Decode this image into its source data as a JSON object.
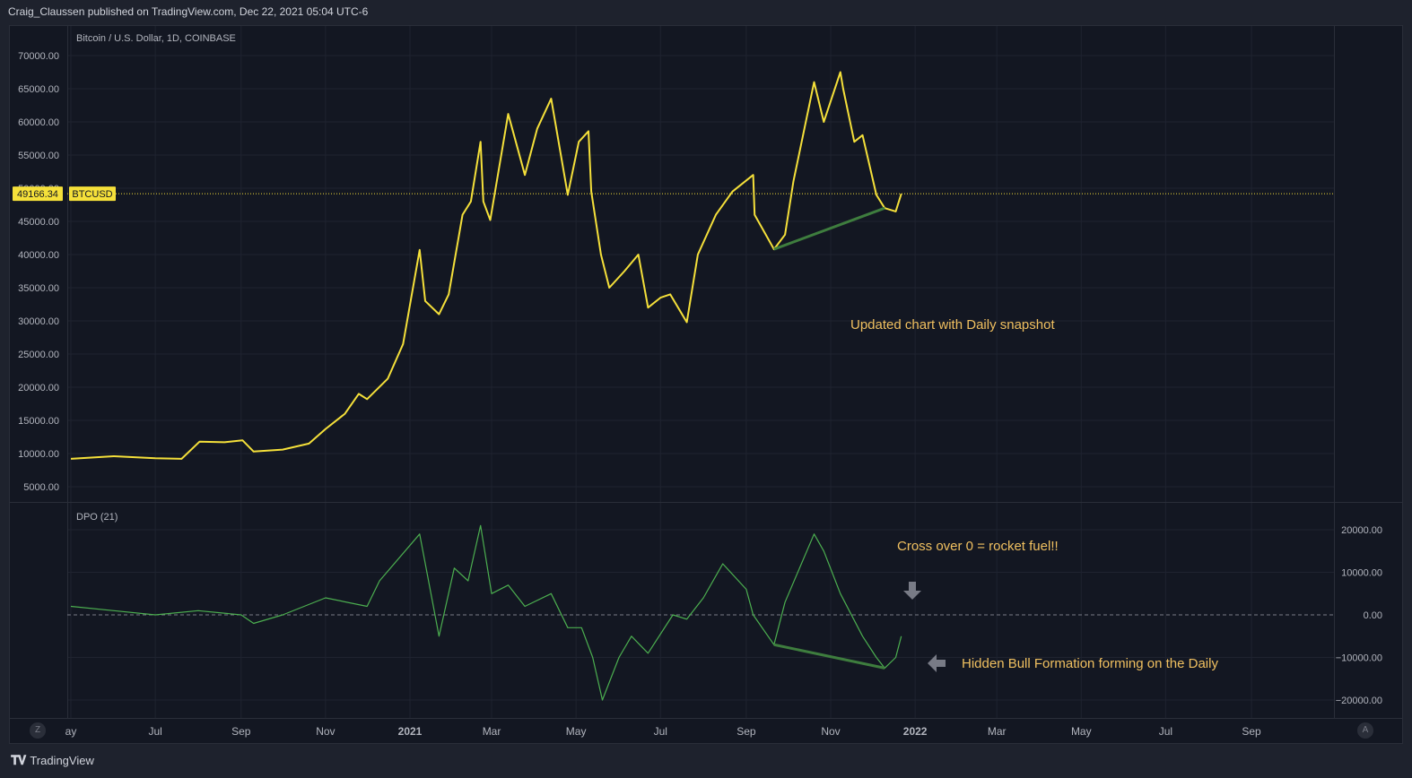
{
  "header": {
    "text": "Craig_Claussen published on TradingView.com, Dec 22, 2021 05:04 UTC-6"
  },
  "footer": {
    "brand": "TradingView",
    "left_button": "Z",
    "right_button": "A"
  },
  "colors": {
    "price": "#f5e03a",
    "dpo": "#4caf50",
    "trendline": "#3e7d3e",
    "annotation": "#f0c060",
    "background": "#131722",
    "grid": "#1f2330",
    "text": "#b2b5be"
  },
  "chart_data": [
    {
      "type": "line",
      "title": "Bitcoin / U.S. Dollar, 1D, COINBASE",
      "series": [
        {
          "name": "BTCUSD",
          "x": [
            "2020-05-01",
            "2020-06-01",
            "2020-07-01",
            "2020-07-20",
            "2020-08-02",
            "2020-08-20",
            "2020-09-02",
            "2020-09-10",
            "2020-10-01",
            "2020-10-20",
            "2020-11-01",
            "2020-11-15",
            "2020-11-25",
            "2020-12-01",
            "2020-12-16",
            "2020-12-27",
            "2021-01-08",
            "2021-01-12",
            "2021-01-22",
            "2021-01-29",
            "2021-02-08",
            "2021-02-14",
            "2021-02-21",
            "2021-02-23",
            "2021-02-28",
            "2021-03-13",
            "2021-03-25",
            "2021-04-03",
            "2021-04-13",
            "2021-04-25",
            "2021-05-03",
            "2021-05-10",
            "2021-05-12",
            "2021-05-19",
            "2021-05-25",
            "2021-06-05",
            "2021-06-15",
            "2021-06-22",
            "2021-07-01",
            "2021-07-08",
            "2021-07-20",
            "2021-07-28",
            "2021-08-10",
            "2021-08-22",
            "2021-09-06",
            "2021-09-07",
            "2021-09-21",
            "2021-09-29",
            "2021-10-05",
            "2021-10-15",
            "2021-10-20",
            "2021-10-27",
            "2021-11-08",
            "2021-11-10",
            "2021-11-18",
            "2021-11-24",
            "2021-12-04",
            "2021-12-10",
            "2021-12-18",
            "2021-12-22"
          ],
          "values": [
            9200,
            9600,
            9300,
            9200,
            11800,
            11700,
            12000,
            10300,
            10600,
            11500,
            13700,
            16000,
            19000,
            18200,
            21300,
            26500,
            40700,
            33000,
            31000,
            34000,
            46000,
            48000,
            57000,
            48000,
            45200,
            61200,
            52000,
            59000,
            63500,
            49000,
            57000,
            58600,
            49500,
            40000,
            35000,
            37500,
            40000,
            32000,
            33500,
            34000,
            29800,
            40000,
            46000,
            49500,
            52000,
            46000,
            40800,
            43000,
            51000,
            61000,
            66000,
            60000,
            67500,
            65000,
            57000,
            58000,
            49000,
            47000,
            46500,
            49166.34
          ]
        }
      ],
      "ylim": [
        3000,
        73000
      ],
      "yticks": [
        "70000.00",
        "65000.00",
        "60000.00",
        "55000.00",
        "50000.00",
        "45000.00",
        "40000.00",
        "35000.00",
        "30000.00",
        "25000.00",
        "20000.00",
        "15000.00",
        "10000.00",
        "5000.00"
      ],
      "last_price": "49166.34",
      "symbol_label": "BTCUSD",
      "trendline": {
        "x": [
          "2021-09-21",
          "2021-12-10"
        ],
        "y": [
          40800,
          47000
        ]
      },
      "annotation": "Updated chart with Daily snapshot"
    },
    {
      "type": "line",
      "title": "DPO (21)",
      "series": [
        {
          "name": "DPO",
          "x": [
            "2020-05-01",
            "2020-06-01",
            "2020-07-01",
            "2020-08-01",
            "2020-09-01",
            "2020-09-10",
            "2020-10-01",
            "2020-11-01",
            "2020-12-01",
            "2020-12-10",
            "2021-01-08",
            "2021-01-22",
            "2021-02-02",
            "2021-02-12",
            "2021-02-21",
            "2021-03-01",
            "2021-03-13",
            "2021-03-25",
            "2021-04-13",
            "2021-04-25",
            "2021-05-05",
            "2021-05-13",
            "2021-05-20",
            "2021-06-01",
            "2021-06-10",
            "2021-06-22",
            "2021-07-10",
            "2021-07-20",
            "2021-08-01",
            "2021-08-15",
            "2021-09-01",
            "2021-09-06",
            "2021-09-21",
            "2021-09-29",
            "2021-10-20",
            "2021-10-27",
            "2021-11-08",
            "2021-11-24",
            "2021-12-04",
            "2021-12-10",
            "2021-12-18",
            "2021-12-22"
          ],
          "values": [
            2000,
            1000,
            0,
            1000,
            0,
            -2000,
            0,
            4000,
            2000,
            8000,
            19000,
            -5000,
            11000,
            8000,
            21000,
            5000,
            7000,
            2000,
            5000,
            -3000,
            -3000,
            -10000,
            -20000,
            -10000,
            -5000,
            -9000,
            0,
            -1000,
            4000,
            12000,
            6000,
            0,
            -7000,
            3000,
            19000,
            15000,
            5000,
            -5000,
            -10000,
            -12500,
            -10000,
            -5000
          ]
        }
      ],
      "ylim": [
        -21000,
        22000
      ],
      "yticks": [
        "20000.00",
        "10000.00",
        "0.00",
        "−10000.00",
        "−20000.00"
      ],
      "trendline": {
        "x": [
          "2021-09-21",
          "2021-12-10"
        ],
        "y": [
          -7000,
          -12500
        ]
      },
      "annotations": [
        "Cross over 0 = rocket fuel!!",
        "Hidden Bull Formation forming on the Daily"
      ]
    }
  ],
  "x_axis": {
    "ticks": [
      {
        "date": "2020-05-01",
        "label": "ay",
        "bold": false
      },
      {
        "date": "2020-07-01",
        "label": "Jul",
        "bold": false
      },
      {
        "date": "2020-09-01",
        "label": "Sep",
        "bold": false
      },
      {
        "date": "2020-11-01",
        "label": "Nov",
        "bold": false
      },
      {
        "date": "2021-01-01",
        "label": "2021",
        "bold": true
      },
      {
        "date": "2021-03-01",
        "label": "Mar",
        "bold": false
      },
      {
        "date": "2021-05-01",
        "label": "May",
        "bold": false
      },
      {
        "date": "2021-07-01",
        "label": "Jul",
        "bold": false
      },
      {
        "date": "2021-09-01",
        "label": "Sep",
        "bold": false
      },
      {
        "date": "2021-11-01",
        "label": "Nov",
        "bold": false
      },
      {
        "date": "2022-01-01",
        "label": "2022",
        "bold": true
      },
      {
        "date": "2022-03-01",
        "label": "Mar",
        "bold": false
      },
      {
        "date": "2022-05-01",
        "label": "May",
        "bold": false
      },
      {
        "date": "2022-07-01",
        "label": "Jul",
        "bold": false
      },
      {
        "date": "2022-09-01",
        "label": "Sep",
        "bold": false
      }
    ]
  }
}
